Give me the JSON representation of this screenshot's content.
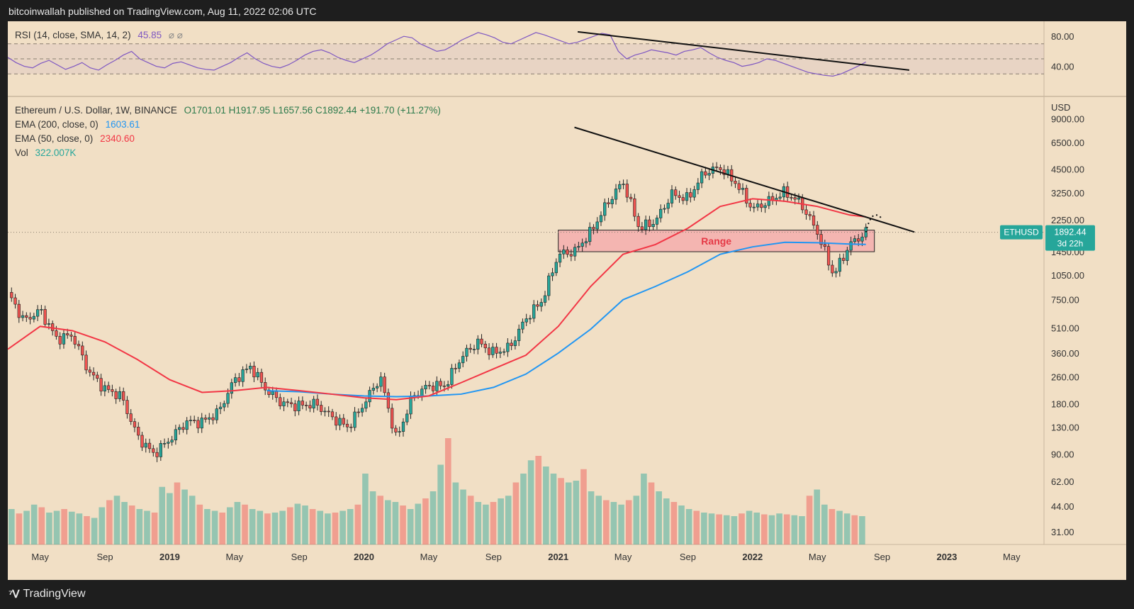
{
  "header": "bitcoinwallah published on TradingView.com, Aug 11, 2022 02:06 UTC",
  "footer": {
    "brand": "TradingView",
    "logo_icon": "tradingview-logo-icon"
  },
  "rsi_legend": {
    "label": "RSI (14, close, SMA, 14, 2)",
    "value": "45.85",
    "extra": "⌀ ⌀",
    "value_color": "#7e57c2"
  },
  "price_legend": {
    "symbol": "Ethereum / U.S. Dollar, 1W, BINANCE",
    "ohlc": "O1701.01  H1917.95  L1657.56  C1892.44  +191.70 (+11.27%)",
    "ema200_label": "EMA (200, close, 0)",
    "ema200_value": "1603.61",
    "ema200_color": "#2196f3",
    "ema50_label": "EMA (50, close, 0)",
    "ema50_value": "2340.60",
    "ema50_color": "#f23645",
    "vol_label": "Vol",
    "vol_value": "322.007K",
    "vol_color": "#26a69a"
  },
  "axis": {
    "currency": "USD",
    "rsi_ticks": [
      "80.00",
      "40.00"
    ],
    "price_ticks": [
      "9000.00",
      "6500.00",
      "4500.00",
      "3250.00",
      "2250.00",
      "1450.00",
      "1050.00",
      "750.00",
      "510.00",
      "360.00",
      "260.00",
      "180.00",
      "130.00",
      "90.00",
      "62.00",
      "44.00",
      "31.00"
    ],
    "x_ticks": [
      "May",
      "Sep",
      "2019",
      "May",
      "Sep",
      "2020",
      "May",
      "Sep",
      "2021",
      "May",
      "Sep",
      "2022",
      "May",
      "Sep",
      "2023",
      "May"
    ]
  },
  "price_tag": {
    "symbol": "ETHUSD",
    "price": "1892.44",
    "countdown": "3d 22h",
    "color": "#26a69a"
  },
  "range_label": "Range",
  "chart_data": {
    "type": "candlestick",
    "symbol": "ETHUSD",
    "interval": "1W",
    "y_scale": "log",
    "ylim": [
      26,
      12000
    ],
    "x_range": [
      "2018-03",
      "2023-07"
    ],
    "colors": {
      "up": "#26a69a",
      "down": "#ef5350",
      "ema200": "#2196f3",
      "ema50": "#f23645",
      "rsi": "#7e57c2"
    },
    "price_path": [
      [
        "2018-03",
        830
      ],
      [
        "2018-04",
        560
      ],
      [
        "2018-05",
        650
      ],
      [
        "2018-06",
        440
      ],
      [
        "2018-07",
        460
      ],
      [
        "2018-08",
        280
      ],
      [
        "2018-09",
        220
      ],
      [
        "2018-10",
        200
      ],
      [
        "2018-11",
        115
      ],
      [
        "2018-12",
        90
      ],
      [
        "2019-01",
        110
      ],
      [
        "2019-02",
        140
      ],
      [
        "2019-03",
        140
      ],
      [
        "2019-04",
        160
      ],
      [
        "2019-05",
        250
      ],
      [
        "2019-06",
        300
      ],
      [
        "2019-07",
        215
      ],
      [
        "2019-08",
        180
      ],
      [
        "2019-09",
        175
      ],
      [
        "2019-10",
        180
      ],
      [
        "2019-11",
        150
      ],
      [
        "2019-12",
        130
      ],
      [
        "2020-01",
        180
      ],
      [
        "2020-02",
        260
      ],
      [
        "2020-03",
        110
      ],
      [
        "2020-04",
        200
      ],
      [
        "2020-05",
        230
      ],
      [
        "2020-06",
        230
      ],
      [
        "2020-07",
        340
      ],
      [
        "2020-08",
        420
      ],
      [
        "2020-09",
        360
      ],
      [
        "2020-10",
        390
      ],
      [
        "2020-11",
        580
      ],
      [
        "2020-12",
        740
      ],
      [
        "2021-01",
        1400
      ],
      [
        "2021-02",
        1450
      ],
      [
        "2021-03",
        1900
      ],
      [
        "2021-04",
        2800
      ],
      [
        "2021-05",
        3800
      ],
      [
        "2021-06",
        2000
      ],
      [
        "2021-07",
        2200
      ],
      [
        "2021-08",
        3200
      ],
      [
        "2021-09",
        3000
      ],
      [
        "2021-10",
        4300
      ],
      [
        "2021-11",
        4600
      ],
      [
        "2021-12",
        3700
      ],
      [
        "2022-01",
        2600
      ],
      [
        "2022-02",
        2900
      ],
      [
        "2022-03",
        3300
      ],
      [
        "2022-04",
        2800
      ],
      [
        "2022-05",
        1900
      ],
      [
        "2022-06",
        1050
      ],
      [
        "2022-07",
        1600
      ],
      [
        "2022-08",
        1892
      ]
    ],
    "ema50": [
      [
        "2018-03",
        380
      ],
      [
        "2018-05",
        520
      ],
      [
        "2018-07",
        490
      ],
      [
        "2018-09",
        420
      ],
      [
        "2018-11",
        330
      ],
      [
        "2019-01",
        250
      ],
      [
        "2019-03",
        210
      ],
      [
        "2019-05",
        215
      ],
      [
        "2019-07",
        225
      ],
      [
        "2019-09",
        215
      ],
      [
        "2019-11",
        205
      ],
      [
        "2020-01",
        195
      ],
      [
        "2020-03",
        190
      ],
      [
        "2020-05",
        200
      ],
      [
        "2020-07",
        240
      ],
      [
        "2020-09",
        290
      ],
      [
        "2020-11",
        350
      ],
      [
        "2021-01",
        520
      ],
      [
        "2021-03",
        900
      ],
      [
        "2021-05",
        1400
      ],
      [
        "2021-07",
        1600
      ],
      [
        "2021-09",
        2000
      ],
      [
        "2021-11",
        2700
      ],
      [
        "2022-01",
        3000
      ],
      [
        "2022-03",
        2900
      ],
      [
        "2022-05",
        2700
      ],
      [
        "2022-07",
        2400
      ],
      [
        "2022-08",
        2340.6
      ]
    ],
    "ema200": [
      [
        "2019-07",
        215
      ],
      [
        "2019-09",
        212
      ],
      [
        "2019-11",
        205
      ],
      [
        "2020-01",
        200
      ],
      [
        "2020-03",
        198
      ],
      [
        "2020-05",
        200
      ],
      [
        "2020-07",
        205
      ],
      [
        "2020-09",
        225
      ],
      [
        "2020-11",
        270
      ],
      [
        "2021-01",
        360
      ],
      [
        "2021-03",
        500
      ],
      [
        "2021-05",
        750
      ],
      [
        "2021-07",
        900
      ],
      [
        "2021-09",
        1100
      ],
      [
        "2021-11",
        1400
      ],
      [
        "2022-01",
        1550
      ],
      [
        "2022-03",
        1650
      ],
      [
        "2022-05",
        1640
      ],
      [
        "2022-07",
        1610
      ],
      [
        "2022-08",
        1603.61
      ]
    ],
    "volume_values": [
      40,
      35,
      38,
      45,
      42,
      36,
      38,
      40,
      37,
      35,
      32,
      30,
      42,
      50,
      55,
      48,
      44,
      40,
      38,
      36,
      65,
      58,
      70,
      62,
      55,
      45,
      40,
      38,
      36,
      42,
      48,
      45,
      40,
      38,
      35,
      36,
      38,
      42,
      46,
      44,
      40,
      38,
      35,
      36,
      38,
      40,
      45,
      80,
      60,
      55,
      50,
      48,
      44,
      40,
      46,
      52,
      60,
      90,
      120,
      70,
      62,
      55,
      48,
      45,
      48,
      52,
      55,
      70,
      80,
      95,
      100,
      88,
      80,
      75,
      70,
      72,
      85,
      60,
      55,
      50,
      48,
      45,
      50,
      55,
      80,
      70,
      60,
      52,
      48,
      44,
      40,
      38,
      36,
      35,
      34,
      33,
      32,
      35,
      38,
      36,
      34,
      33,
      35,
      34,
      33,
      32,
      55,
      62,
      45,
      40,
      38,
      35,
      33,
      32
    ],
    "range_zone": {
      "low": 1450,
      "high": 1950,
      "from": "2021-01",
      "to": "2022-08"
    },
    "trendline_price": {
      "from": [
        "2021-02",
        8000
      ],
      "to": [
        "2022-11",
        1900
      ]
    },
    "projection_arrow": "dotted-up",
    "rsi": {
      "bands": [
        70,
        50,
        30
      ],
      "ylim": [
        0,
        100
      ],
      "values": [
        52,
        45,
        40,
        38,
        44,
        48,
        42,
        36,
        40,
        45,
        38,
        35,
        42,
        48,
        55,
        60,
        50,
        45,
        40,
        38,
        44,
        46,
        42,
        38,
        36,
        35,
        40,
        45,
        52,
        58,
        50,
        44,
        40,
        38,
        42,
        48,
        55,
        60,
        62,
        58,
        52,
        48,
        45,
        50,
        55,
        62,
        70,
        75,
        80,
        78,
        70,
        65,
        60,
        62,
        68,
        75,
        80,
        85,
        82,
        78,
        72,
        70,
        75,
        80,
        85,
        82,
        78,
        74,
        70,
        72,
        76,
        80,
        84,
        82,
        60,
        50,
        55,
        58,
        62,
        60,
        58,
        55,
        60,
        62,
        65,
        58,
        52,
        48,
        45,
        40,
        42,
        45,
        50,
        48,
        44,
        40,
        36,
        32,
        30,
        28,
        27,
        30,
        35,
        40,
        45.85
      ],
      "trendline": {
        "from": [
          0,
          86
        ],
        "to": [
          1,
          35
        ]
      }
    },
    "legend_placement": "top-left"
  }
}
